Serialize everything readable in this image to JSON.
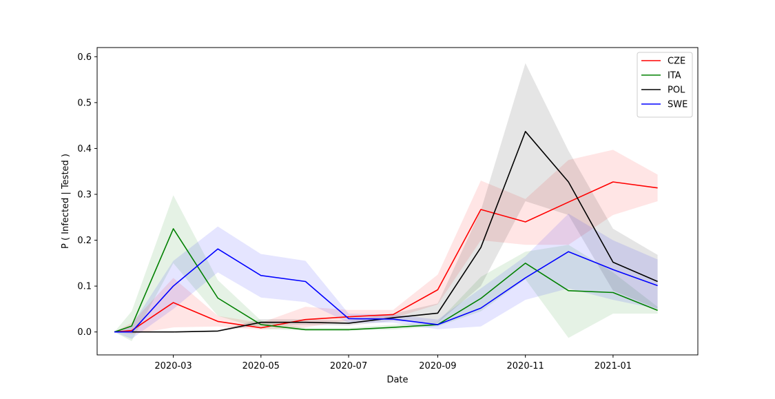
{
  "chart_data": {
    "type": "line",
    "xlabel": "Date",
    "ylabel": "P ( Infected | Tested )",
    "xlim": [
      "2020-01-08",
      "2021-03-01"
    ],
    "ylim": [
      -0.05,
      0.62
    ],
    "xticks": [
      "2020-03",
      "2020-05",
      "2020-07",
      "2020-09",
      "2020-11",
      "2021-01"
    ],
    "yticks": [
      "0.0",
      "0.1",
      "0.2",
      "0.3",
      "0.4",
      "0.5",
      "0.6"
    ],
    "legend_position": "top-right",
    "x": [
      "2020-01-20",
      "2020-02-01",
      "2020-03-01",
      "2020-04-01",
      "2020-05-01",
      "2020-06-01",
      "2020-07-01",
      "2020-08-01",
      "2020-09-01",
      "2020-10-01",
      "2020-11-01",
      "2020-12-01",
      "2021-01-01",
      "2021-02-01"
    ],
    "series": [
      {
        "name": "CZE",
        "color": "#ff0000",
        "values": [
          0.0,
          0.003,
          0.064,
          0.023,
          0.009,
          0.027,
          0.033,
          0.038,
          0.092,
          0.267,
          0.24,
          0.283,
          0.327,
          0.314
        ],
        "lower": [
          0.0,
          -0.005,
          0.01,
          0.012,
          0.005,
          0.01,
          0.025,
          0.03,
          0.06,
          0.2,
          0.19,
          0.19,
          0.255,
          0.285
        ],
        "upper": [
          0.0,
          0.02,
          0.118,
          0.035,
          0.02,
          0.055,
          0.048,
          0.048,
          0.125,
          0.33,
          0.29,
          0.375,
          0.397,
          0.343
        ]
      },
      {
        "name": "ITA",
        "color": "#008000",
        "values": [
          0.0,
          0.013,
          0.225,
          0.074,
          0.016,
          0.005,
          0.005,
          0.01,
          0.016,
          0.073,
          0.15,
          0.09,
          0.086,
          0.047
        ],
        "lower": [
          0.0,
          -0.02,
          0.15,
          0.035,
          0.007,
          0.003,
          0.003,
          0.005,
          0.012,
          0.045,
          0.115,
          -0.013,
          0.04,
          0.04
        ],
        "upper": [
          0.0,
          0.045,
          0.298,
          0.113,
          0.025,
          0.009,
          0.009,
          0.016,
          0.022,
          0.12,
          0.175,
          0.19,
          0.13,
          0.055
        ]
      },
      {
        "name": "POL",
        "color": "#000000",
        "values": [
          0.0,
          0.0,
          0.0,
          0.002,
          0.021,
          0.021,
          0.019,
          0.031,
          0.041,
          0.184,
          0.437,
          0.327,
          0.152,
          0.11
        ],
        "lower": [
          0.0,
          0.0,
          0.0,
          0.001,
          0.015,
          0.015,
          0.014,
          0.024,
          0.02,
          0.1,
          0.285,
          0.255,
          0.09,
          0.05
        ],
        "upper": [
          0.0,
          0.0,
          0.001,
          0.004,
          0.028,
          0.028,
          0.025,
          0.04,
          0.062,
          0.265,
          0.586,
          0.395,
          0.225,
          0.168
        ]
      },
      {
        "name": "SWE",
        "color": "#0000ff",
        "values": [
          0.0,
          0.0,
          0.1,
          0.181,
          0.123,
          0.11,
          0.029,
          0.028,
          0.016,
          0.052,
          0.118,
          0.175,
          0.136,
          0.101
        ],
        "lower": [
          0.0,
          -0.015,
          0.05,
          0.13,
          0.075,
          0.065,
          0.02,
          0.02,
          0.006,
          0.012,
          0.07,
          0.095,
          0.07,
          0.05
        ],
        "upper": [
          0.0,
          0.015,
          0.155,
          0.23,
          0.17,
          0.155,
          0.04,
          0.038,
          0.027,
          0.095,
          0.165,
          0.258,
          0.2,
          0.158
        ]
      }
    ]
  }
}
